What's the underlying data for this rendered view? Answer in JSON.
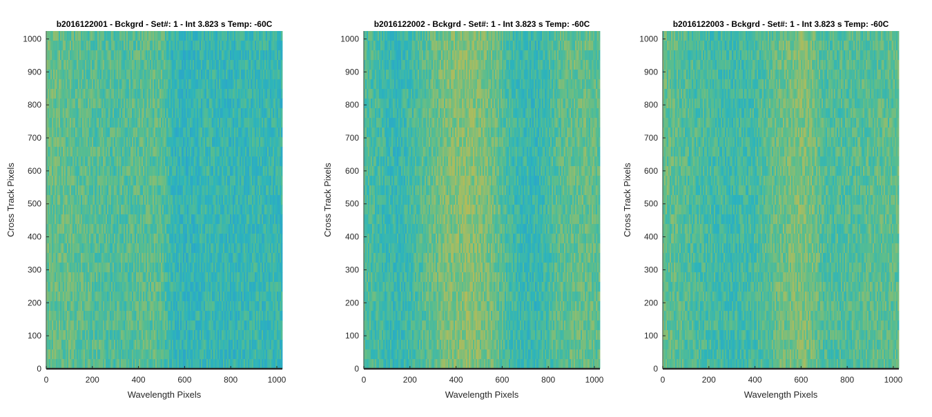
{
  "chart_data": [
    {
      "type": "heatmap",
      "title": "b2016122001 - Bckgrd - Set#: 1 - Int 3.823 s Temp: -60C",
      "xlabel": "Wavelength Pixels",
      "ylabel": "Cross Track Pixels",
      "xlim": [
        0,
        1024
      ],
      "ylim": [
        0,
        1024
      ],
      "xticks": [
        0,
        200,
        400,
        600,
        800,
        1000
      ],
      "yticks": [
        0,
        100,
        200,
        300,
        400,
        500,
        600,
        700,
        800,
        900,
        1000
      ],
      "colormap": [
        "#2a9fd0",
        "#2db4bb",
        "#58bd8f",
        "#9cbd68",
        "#c8b94a"
      ],
      "column_profile": {
        "x": [
          0,
          100,
          200,
          300,
          400,
          500,
          550,
          600,
          700,
          800,
          900,
          1024
        ],
        "level": [
          0.55,
          0.52,
          0.48,
          0.45,
          0.48,
          0.5,
          0.3,
          0.25,
          0.33,
          0.28,
          0.32,
          0.3
        ]
      }
    },
    {
      "type": "heatmap",
      "title": "b2016122002 - Bckgrd - Set#: 1 - Int 3.823 s Temp: -60C",
      "xlabel": "Wavelength Pixels",
      "ylabel": "Cross Track Pixels",
      "xlim": [
        0,
        1024
      ],
      "ylim": [
        0,
        1024
      ],
      "xticks": [
        0,
        200,
        400,
        600,
        800,
        1000
      ],
      "yticks": [
        0,
        100,
        200,
        300,
        400,
        500,
        600,
        700,
        800,
        900,
        1000
      ],
      "colormap": [
        "#2a9fd0",
        "#2db4bb",
        "#58bd8f",
        "#9cbd68",
        "#c8b94a"
      ],
      "column_profile": {
        "x": [
          0,
          100,
          150,
          250,
          350,
          450,
          550,
          650,
          750,
          850,
          950,
          1024
        ],
        "level": [
          0.45,
          0.35,
          0.3,
          0.45,
          0.62,
          0.7,
          0.6,
          0.35,
          0.3,
          0.5,
          0.55,
          0.5
        ]
      }
    },
    {
      "type": "heatmap",
      "title": "b2016122003 - Bckgrd - Set#: 1 - Int 3.823 s Temp: -60C",
      "xlabel": "Wavelength Pixels",
      "ylabel": "Cross Track Pixels",
      "xlim": [
        0,
        1024
      ],
      "ylim": [
        0,
        1024
      ],
      "xticks": [
        0,
        200,
        400,
        600,
        800,
        1000
      ],
      "yticks": [
        0,
        100,
        200,
        300,
        400,
        500,
        600,
        700,
        800,
        900,
        1000
      ],
      "colormap": [
        "#2a9fd0",
        "#2db4bb",
        "#58bd8f",
        "#9cbd68",
        "#c8b94a"
      ],
      "column_profile": {
        "x": [
          0,
          100,
          200,
          300,
          400,
          500,
          600,
          650,
          700,
          800,
          900,
          1024
        ],
        "level": [
          0.55,
          0.45,
          0.4,
          0.35,
          0.4,
          0.55,
          0.65,
          0.6,
          0.45,
          0.45,
          0.5,
          0.5
        ]
      }
    }
  ]
}
